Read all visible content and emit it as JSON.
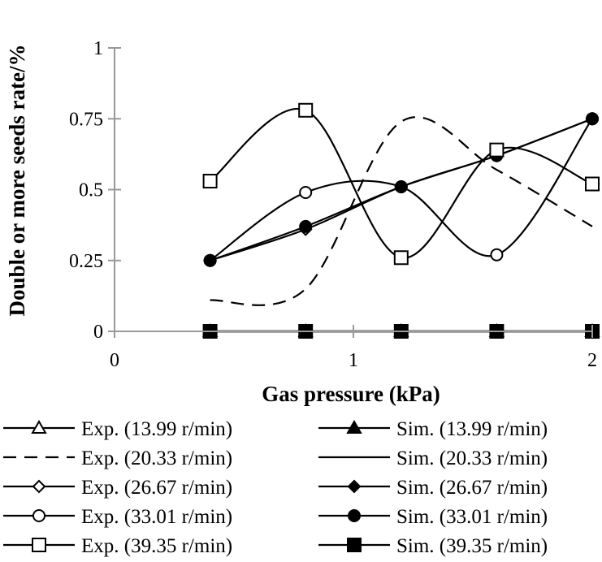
{
  "chart_data": {
    "type": "line",
    "xlabel": "Gas pressure (kPa)",
    "ylabel": "Double or more seeds rate/%",
    "xlim": [
      0,
      2
    ],
    "ylim": [
      0,
      1
    ],
    "xticks": [
      0,
      1,
      2
    ],
    "yticks": [
      0,
      0.25,
      0.5,
      0.75,
      1
    ],
    "xtick_labels": [
      "0",
      "1",
      "2"
    ],
    "ytick_labels": [
      "0",
      "0.25",
      "0.5",
      "0.75",
      "1"
    ],
    "grid": false,
    "legend_position": "bottom",
    "series": [
      {
        "name": "Exp. (13.99 r/min)",
        "style": "solid",
        "marker": "triangle-open",
        "x": [],
        "y": []
      },
      {
        "name": "Sim. (13.99 r/min)",
        "style": "solid",
        "marker": "triangle-filled",
        "x": [
          0.4,
          0.8,
          1.2,
          1.6,
          2.0
        ],
        "y": [
          0,
          0,
          0,
          0,
          0
        ]
      },
      {
        "name": "Exp. (20.33 r/min)",
        "style": "dashed",
        "marker": "none",
        "x": [
          0.4,
          0.8,
          1.2,
          1.6,
          2.0
        ],
        "y": [
          0.11,
          0.15,
          0.74,
          0.57,
          0.37
        ]
      },
      {
        "name": "Sim. (20.33 r/min)",
        "style": "solid",
        "marker": "none",
        "x": [
          0.4,
          0.8,
          1.2,
          1.6,
          2.0
        ],
        "y": [
          0,
          0,
          0,
          0,
          0
        ]
      },
      {
        "name": "Exp. (26.67 r/min)",
        "style": "solid",
        "marker": "diamond-open",
        "x": [
          0.4,
          0.8,
          1.2,
          1.6,
          2.0
        ],
        "y": [
          0.25,
          0.36,
          0.51,
          0.62,
          0.75
        ]
      },
      {
        "name": "Sim. (26.67 r/min)",
        "style": "solid",
        "marker": "diamond-filled",
        "x": [
          0.4,
          0.8,
          1.2,
          1.6,
          2.0
        ],
        "y": [
          0,
          0,
          0,
          0,
          0
        ]
      },
      {
        "name": "Exp. (33.01 r/min)",
        "style": "solid",
        "marker": "circle-open",
        "x": [
          0.4,
          0.8,
          1.2,
          1.6,
          2.0
        ],
        "y": [
          0.25,
          0.49,
          0.51,
          0.27,
          0.75
        ]
      },
      {
        "name": "Sim. (33.01 r/min)",
        "style": "solid",
        "marker": "circle-filled",
        "x": [
          0.4,
          0.8,
          1.2,
          1.6,
          2.0
        ],
        "y": [
          0.25,
          0.37,
          0.51,
          0.62,
          0.75
        ]
      },
      {
        "name": "Exp. (39.35 r/min)",
        "style": "solid",
        "marker": "square-open",
        "x": [
          0.4,
          0.8,
          1.2,
          1.6,
          2.0
        ],
        "y": [
          0.53,
          0.78,
          0.26,
          0.64,
          0.52
        ]
      },
      {
        "name": "Sim. (39.35 r/min)",
        "style": "solid",
        "marker": "square-filled",
        "x": [
          0.4,
          0.8,
          1.2,
          1.6,
          2.0
        ],
        "y": [
          0,
          0,
          0,
          0,
          0
        ]
      }
    ]
  }
}
